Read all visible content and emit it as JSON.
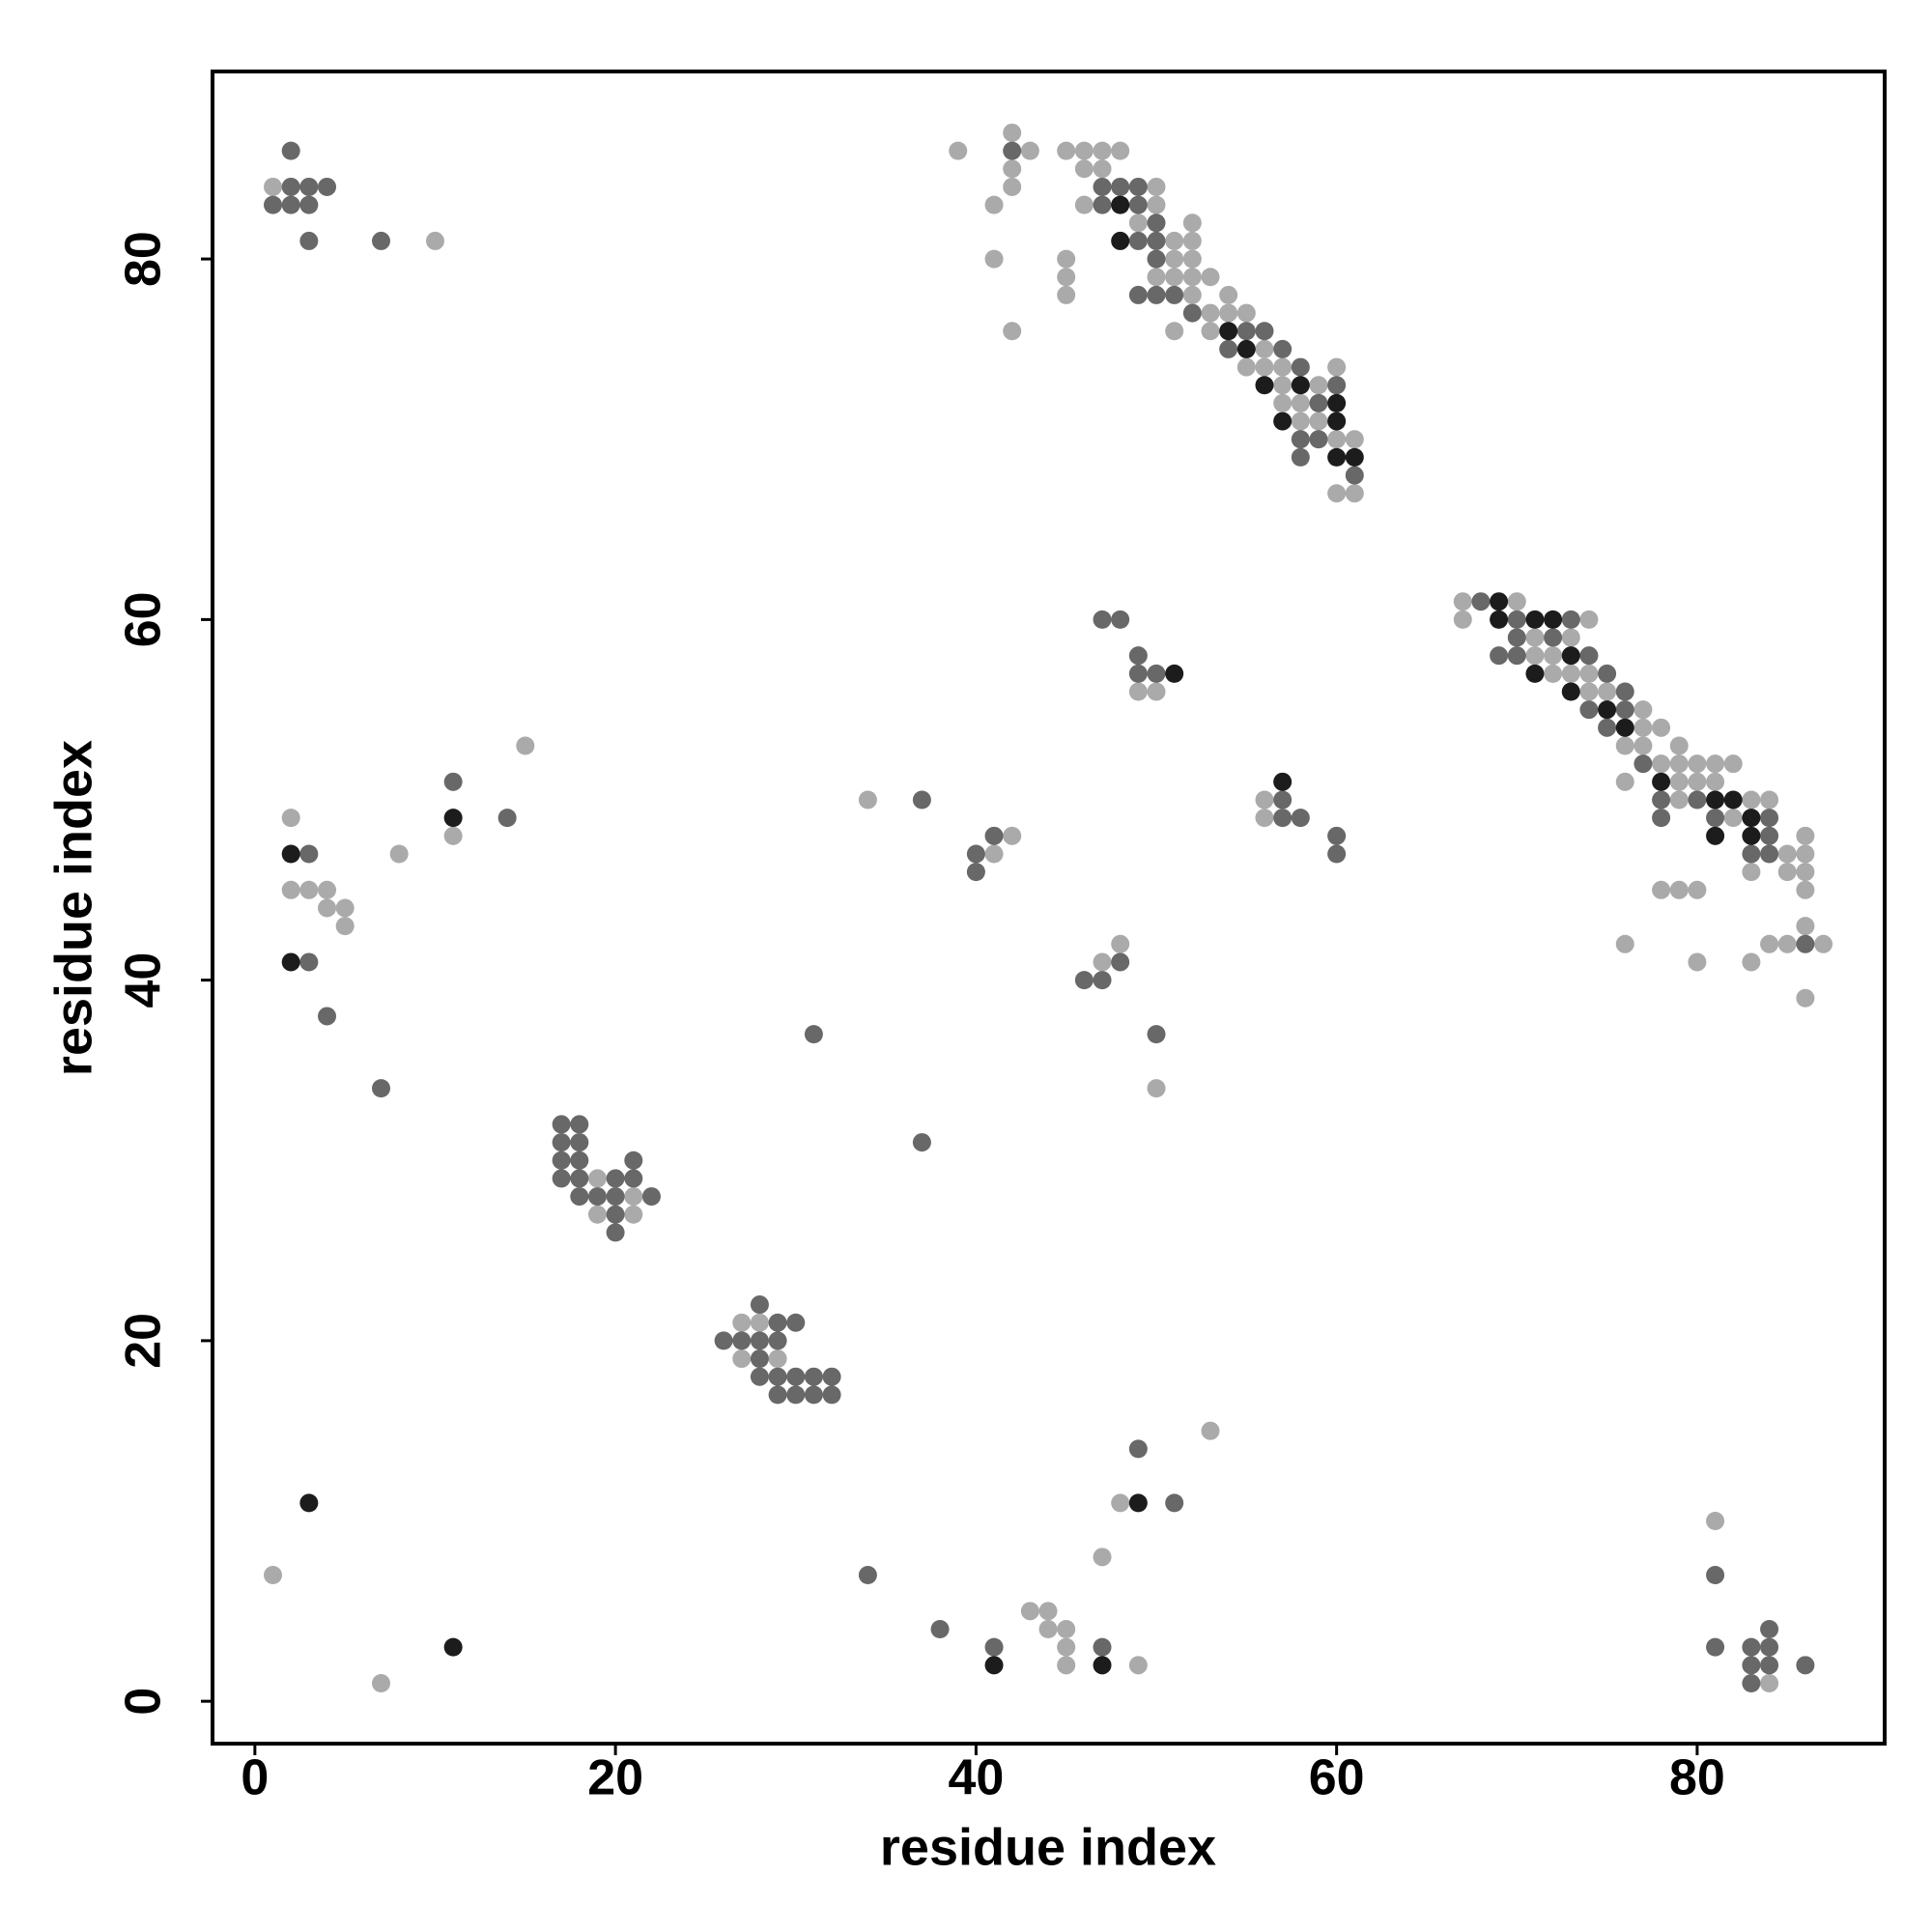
{
  "chart_data": {
    "type": "scatter",
    "x_label": "residue index",
    "y_label": "residue index",
    "xlim": [
      -2.35,
      90.4
    ],
    "ylim": [
      -2.35,
      90.4
    ],
    "xticks": [
      0,
      20,
      40,
      60,
      80
    ],
    "yticks": [
      0,
      20,
      40,
      60,
      80
    ],
    "grid": false,
    "series": [
      {
        "color": "#aaaaaa",
        "x": [
          1,
          10,
          39,
          42,
          43,
          42,
          42,
          41,
          41,
          42,
          45,
          46,
          47,
          48,
          46,
          47,
          50,
          46,
          50,
          49,
          52,
          51,
          52,
          51,
          52,
          45,
          45,
          50,
          51,
          52,
          53,
          45,
          52,
          54,
          53,
          54,
          55,
          51,
          53,
          56,
          55,
          56,
          57,
          60,
          57,
          59,
          57,
          58,
          58,
          59,
          60,
          61,
          60,
          61,
          67,
          70,
          67,
          74,
          71,
          73,
          71,
          72,
          72,
          73,
          74,
          74,
          75,
          77,
          77,
          78,
          76,
          77,
          79,
          78,
          79,
          80,
          81,
          82,
          76,
          79,
          80,
          81,
          79,
          83,
          84,
          82,
          86,
          85,
          86,
          83,
          85,
          86,
          78,
          79,
          80,
          86,
          86,
          76,
          84,
          85,
          87,
          80,
          83,
          86,
          49,
          50,
          56,
          56,
          42,
          41,
          34,
          48,
          47,
          50,
          15,
          2,
          11,
          8,
          2,
          3,
          4,
          4,
          5,
          5,
          19,
          21,
          19,
          21,
          27,
          28,
          27,
          29,
          53,
          48,
          81,
          47,
          1,
          43,
          44,
          44,
          45,
          45,
          45,
          49,
          7,
          84
        ],
        "y": [
          84,
          81,
          86,
          87,
          86,
          85,
          84,
          83,
          80,
          76,
          86,
          86,
          86,
          86,
          85,
          85,
          84,
          83,
          83,
          82,
          82,
          81,
          81,
          80,
          80,
          80,
          79,
          79,
          79,
          79,
          79,
          78,
          78,
          78,
          77,
          77,
          77,
          76,
          76,
          75,
          74,
          74,
          74,
          74,
          73,
          73,
          72,
          72,
          71,
          71,
          70,
          70,
          67,
          67,
          61,
          61,
          60,
          60,
          59,
          59,
          58,
          58,
          57,
          57,
          57,
          56,
          56,
          55,
          54,
          54,
          53,
          53,
          53,
          52,
          52,
          52,
          52,
          52,
          51,
          51,
          51,
          51,
          50,
          50,
          50,
          49,
          48,
          47,
          47,
          46,
          46,
          46,
          45,
          45,
          45,
          45,
          43,
          42,
          42,
          42,
          42,
          41,
          41,
          39,
          56,
          56,
          50,
          49,
          48,
          47,
          50,
          42,
          41,
          34,
          53,
          49,
          48,
          47,
          45,
          45,
          45,
          44,
          44,
          43,
          29,
          28,
          27,
          27,
          21,
          21,
          19,
          19,
          15,
          11,
          10,
          8,
          7,
          5,
          5,
          4,
          4,
          3,
          2,
          2,
          1,
          1
        ]
      },
      {
        "color": "#686868",
        "x": [
          2,
          2,
          3,
          4,
          1,
          2,
          3,
          3,
          7,
          42,
          47,
          48,
          49,
          47,
          49,
          50,
          49,
          50,
          50,
          49,
          50,
          51,
          52,
          55,
          56,
          54,
          57,
          58,
          60,
          59,
          58,
          59,
          58,
          61,
          68,
          70,
          73,
          70,
          72,
          69,
          70,
          74,
          75,
          76,
          74,
          76,
          75,
          77,
          78,
          80,
          78,
          81,
          84,
          84,
          83,
          84,
          86,
          47,
          48,
          49,
          49,
          50,
          57,
          57,
          58,
          60,
          60,
          41,
          40,
          40,
          37,
          48,
          46,
          47,
          50,
          31,
          37,
          11,
          14,
          3,
          3,
          4,
          7,
          17,
          18,
          17,
          18,
          17,
          18,
          21,
          17,
          18,
          20,
          21,
          18,
          19,
          20,
          22,
          20,
          20,
          28,
          29,
          30,
          26,
          27,
          28,
          29,
          28,
          28,
          29,
          30,
          31,
          32,
          29,
          30,
          31,
          32,
          49,
          51,
          34,
          81,
          38,
          84,
          41,
          47,
          81,
          83,
          84,
          83,
          84,
          86,
          83
        ],
        "y": [
          86,
          84,
          84,
          84,
          83,
          83,
          83,
          81,
          81,
          86,
          84,
          84,
          84,
          83,
          83,
          82,
          81,
          81,
          80,
          78,
          78,
          78,
          77,
          76,
          76,
          75,
          75,
          74,
          73,
          72,
          70,
          70,
          69,
          68,
          61,
          60,
          60,
          59,
          59,
          58,
          58,
          58,
          57,
          56,
          55,
          55,
          54,
          52,
          50,
          50,
          49,
          49,
          49,
          48,
          47,
          47,
          42,
          60,
          60,
          58,
          57,
          57,
          50,
          49,
          49,
          48,
          47,
          48,
          47,
          46,
          50,
          41,
          40,
          40,
          37,
          37,
          31,
          51,
          49,
          47,
          41,
          38,
          34,
          32,
          32,
          31,
          31,
          30,
          30,
          30,
          29,
          29,
          29,
          29,
          28,
          28,
          28,
          28,
          27,
          26,
          22,
          21,
          21,
          20,
          20,
          20,
          20,
          19,
          18,
          18,
          18,
          18,
          18,
          17,
          17,
          17,
          17,
          14,
          11,
          7,
          7,
          4,
          4,
          3,
          3,
          3,
          3,
          3,
          2,
          2,
          2,
          1
        ]
      },
      {
        "color": "#1c1c1c",
        "x": [
          48,
          48,
          54,
          55,
          56,
          58,
          60,
          57,
          60,
          60,
          61,
          69,
          69,
          71,
          72,
          73,
          71,
          73,
          75,
          76,
          78,
          81,
          82,
          83,
          81,
          83,
          51,
          57,
          11,
          2,
          2,
          3,
          49,
          11,
          41,
          47
        ],
        "y": [
          83,
          81,
          76,
          75,
          73,
          73,
          72,
          71,
          71,
          69,
          69,
          61,
          60,
          60,
          60,
          58,
          57,
          56,
          55,
          54,
          51,
          50,
          50,
          49,
          48,
          48,
          57,
          51,
          49,
          47,
          41,
          11,
          11,
          3,
          2,
          2
        ]
      }
    ]
  }
}
